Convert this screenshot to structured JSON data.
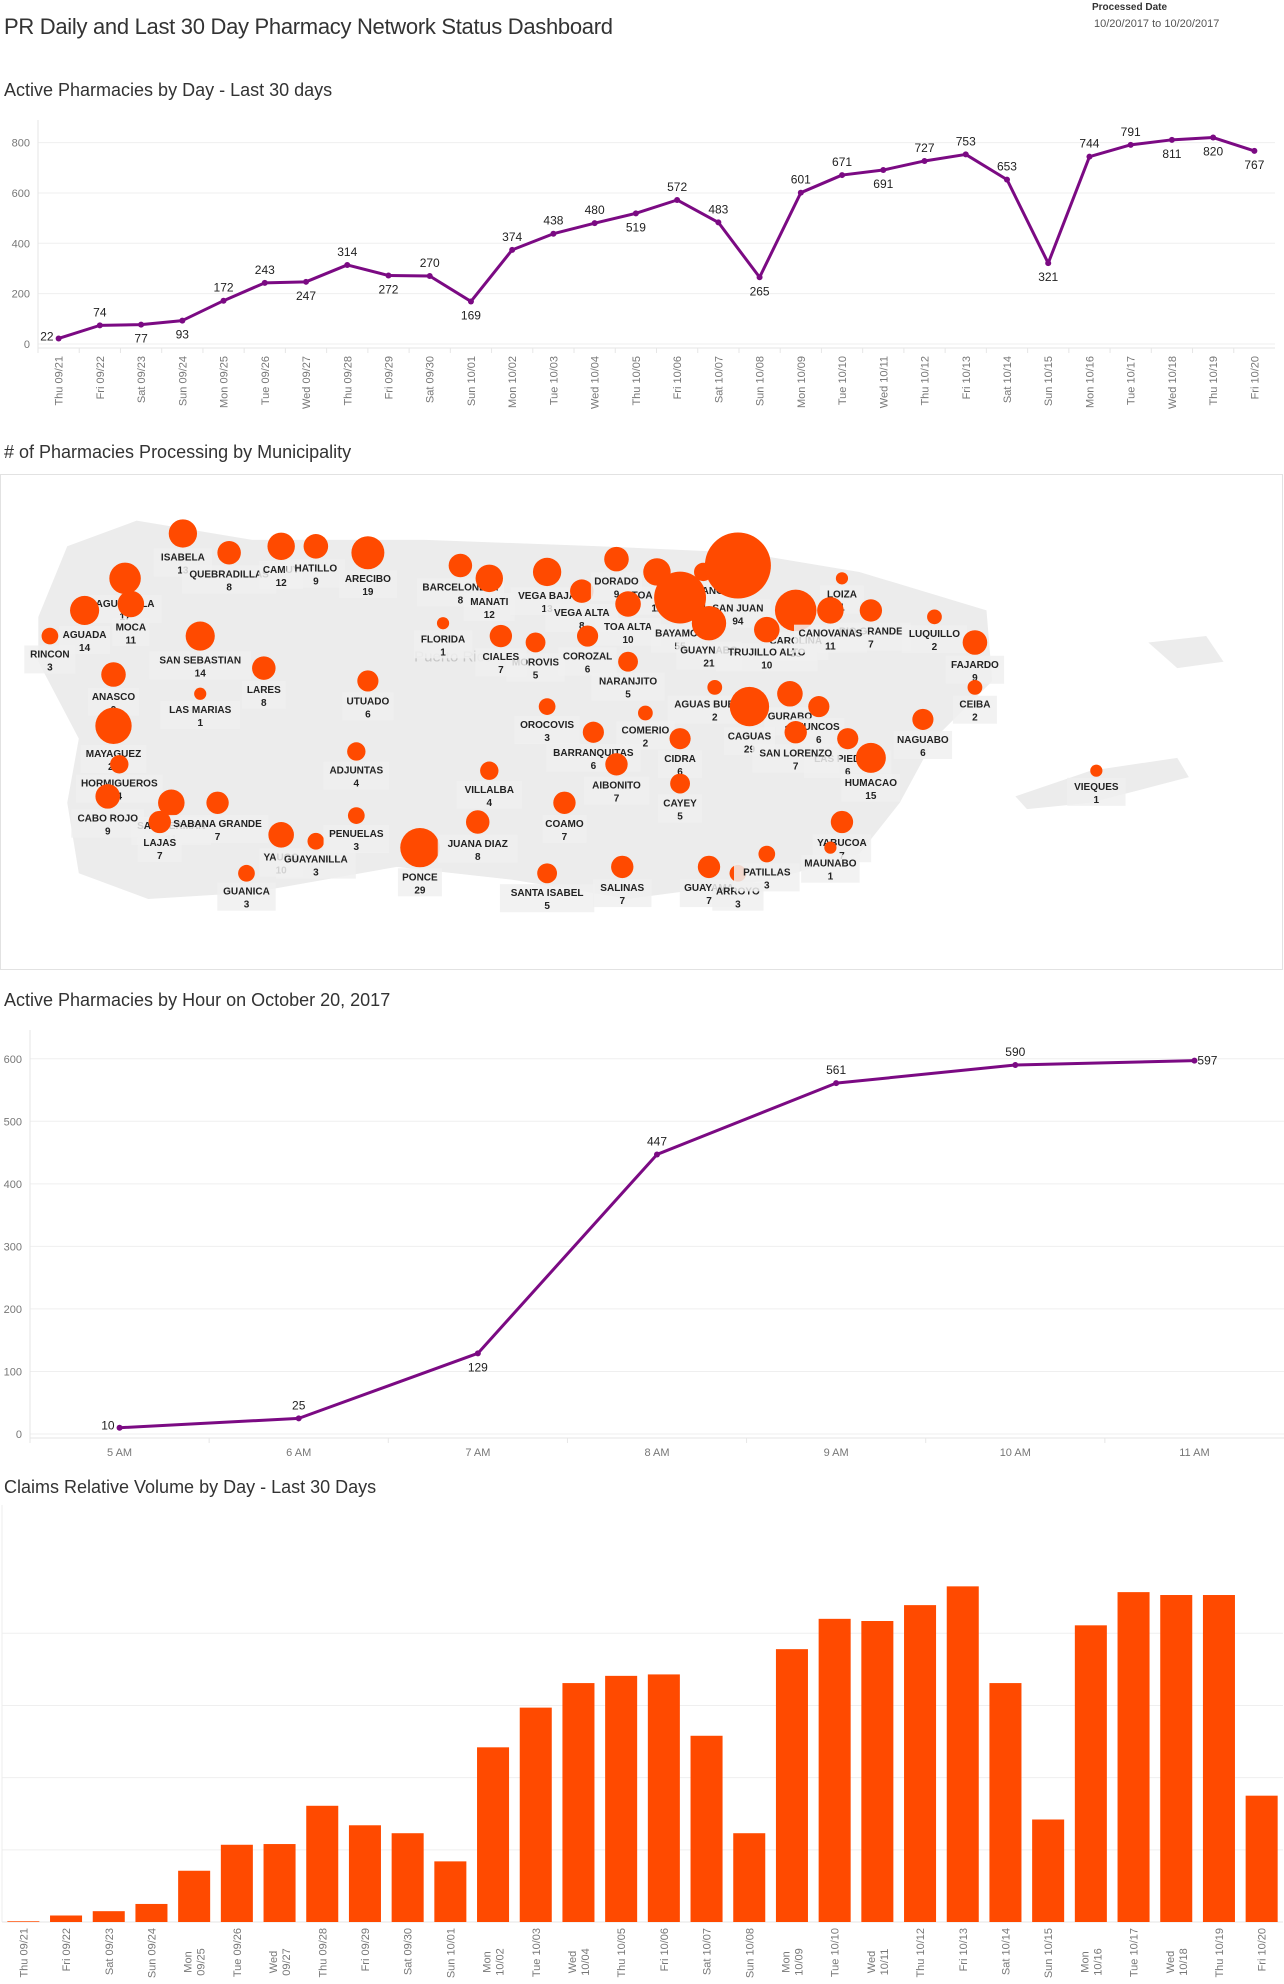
{
  "header": {
    "title": "PR Daily and Last 30 Day Pharmacy Network Status Dashboard",
    "processed_label": "Processed Date",
    "processed_range": "10/20/2017 to 10/20/2017"
  },
  "colors": {
    "line": "#7b0a83",
    "bar": "#ff4a00",
    "bubble": "#ff4a00",
    "land": "#ececec",
    "grid": "#efefef"
  },
  "sections": {
    "daily_title": "Active Pharmacies by Day - Last 30 days",
    "map_title": "# of Pharmacies Processing by Municipality",
    "hourly_title": "Active Pharmacies by Hour on October 20, 2017",
    "claims_title": "Claims Relative Volume by Day - Last 30 Days",
    "map_watermark": "Puerto Rico"
  },
  "chart_data": [
    {
      "id": "daily",
      "type": "line",
      "title": "Active Pharmacies by Day - Last 30 days",
      "xlabel": "",
      "ylabel": "",
      "ylim": [
        0,
        850
      ],
      "yticks": [
        0,
        200,
        400,
        600,
        800
      ],
      "grid": true,
      "categories": [
        "Thu 09/21",
        "Fri 09/22",
        "Sat 09/23",
        "Sun 09/24",
        "Mon 09/25",
        "Tue 09/26",
        "Wed 09/27",
        "Thu 09/28",
        "Fri 09/29",
        "Sat 09/30",
        "Sun 10/01",
        "Mon 10/02",
        "Tue 10/03",
        "Wed 10/04",
        "Thu 10/05",
        "Fri 10/06",
        "Sat 10/07",
        "Sun 10/08",
        "Mon 10/09",
        "Tue 10/10",
        "Wed 10/11",
        "Thu 10/12",
        "Fri 10/13",
        "Sat 10/14",
        "Sun 10/15",
        "Mon 10/16",
        "Tue 10/17",
        "Wed 10/18",
        "Thu 10/19",
        "Fri 10/20"
      ],
      "values": [
        22,
        74,
        77,
        93,
        172,
        243,
        247,
        314,
        272,
        270,
        169,
        374,
        438,
        480,
        519,
        572,
        483,
        265,
        601,
        671,
        691,
        727,
        753,
        653,
        321,
        744,
        791,
        811,
        820,
        767
      ],
      "label_pos": [
        "left",
        "above",
        "below",
        "below",
        "above",
        "above",
        "below",
        "above",
        "below",
        "above",
        "below",
        "above",
        "above",
        "above",
        "below",
        "above",
        "above",
        "below",
        "above",
        "above",
        "below",
        "above",
        "above",
        "above",
        "below",
        "above",
        "above",
        "below",
        "below",
        "below"
      ]
    },
    {
      "id": "hourly",
      "type": "line",
      "title": "Active Pharmacies by Hour on October 20, 2017",
      "xlabel": "",
      "ylabel": "",
      "ylim": [
        0,
        630
      ],
      "yticks": [
        0,
        100,
        200,
        300,
        400,
        500,
        600
      ],
      "grid": true,
      "categories": [
        "5 AM",
        "6 AM",
        "7 AM",
        "8 AM",
        "9 AM",
        "10 AM",
        "11 AM"
      ],
      "values": [
        10,
        25,
        129,
        447,
        561,
        590,
        597
      ],
      "label_pos": [
        "left",
        "above",
        "below",
        "above",
        "above",
        "above",
        "right"
      ]
    },
    {
      "id": "claims",
      "type": "bar",
      "title": "Claims Relative Volume by Day - Last 30 Days",
      "xlabel": "",
      "ylabel": "",
      "note": "No y-axis tick labels shown; values in relative gridline units",
      "ylim": [
        0,
        5.5
      ],
      "gridlines": [
        1,
        2,
        3,
        4
      ],
      "grid": true,
      "categories": [
        "Thu 09/21",
        "Fri 09/22",
        "Sat 09/23",
        "Sun 09/24",
        "Mon 09/25",
        "Tue 09/26",
        "Wed 09/27",
        "Thu 09/28",
        "Fri 09/29",
        "Sat 09/30",
        "Sun 10/01",
        "Mon 10/02",
        "Tue 10/03",
        "Wed 10/04",
        "Thu 10/05",
        "Fri 10/06",
        "Sat 10/07",
        "Sun 10/08",
        "Mon 10/09",
        "Tue 10/10",
        "Wed 10/11",
        "Thu 10/12",
        "Fri 10/13",
        "Sat 10/14",
        "Sun 10/15",
        "Mon 10/16",
        "Tue 10/17",
        "Wed 10/18",
        "Thu 10/19",
        "Fri 10/20"
      ],
      "tick_lines": [
        [
          "Thu 09/21"
        ],
        [
          "Fri 09/22"
        ],
        [
          "Sat 09/23"
        ],
        [
          "Sun 09/24"
        ],
        [
          "Mon",
          "09/25"
        ],
        [
          "Tue 09/26"
        ],
        [
          "Wed",
          "09/27"
        ],
        [
          "Thu 09/28"
        ],
        [
          "Fri 09/29"
        ],
        [
          "Sat 09/30"
        ],
        [
          "Sun 10/01"
        ],
        [
          "Mon",
          "10/02"
        ],
        [
          "Tue 10/03"
        ],
        [
          "Wed",
          "10/04"
        ],
        [
          "Thu 10/05"
        ],
        [
          "Fri 10/06"
        ],
        [
          "Sat 10/07"
        ],
        [
          "Sun 10/08"
        ],
        [
          "Mon",
          "10/09"
        ],
        [
          "Tue 10/10"
        ],
        [
          "Wed",
          "10/11"
        ],
        [
          "Thu 10/12"
        ],
        [
          "Fri 10/13"
        ],
        [
          "Sat 10/14"
        ],
        [
          "Sun 10/15"
        ],
        [
          "Mon",
          "10/16"
        ],
        [
          "Tue 10/17"
        ],
        [
          "Wed",
          "10/18"
        ],
        [
          "Thu 10/19"
        ],
        [
          "Fri 10/20"
        ]
      ],
      "values": [
        0.01,
        0.09,
        0.15,
        0.25,
        0.71,
        1.07,
        1.08,
        1.61,
        1.34,
        1.23,
        0.84,
        2.42,
        2.97,
        3.31,
        3.41,
        3.43,
        2.58,
        1.23,
        3.78,
        4.2,
        4.17,
        4.39,
        4.65,
        3.31,
        1.42,
        4.11,
        4.57,
        4.53,
        4.53,
        1.75
      ]
    },
    {
      "id": "map",
      "type": "scatter",
      "title": "# of Pharmacies Processing by Municipality",
      "encoding": "bubble size = count",
      "points": [
        {
          "name": "AGUADILLA",
          "value": 17,
          "lon": -67.12,
          "lat": 18.43
        },
        {
          "name": "ISABELA",
          "value": 13,
          "lon": -67.02,
          "lat": 18.5
        },
        {
          "name": "QUEBRADILLAS",
          "value": 8,
          "lon": -66.94,
          "lat": 18.47
        },
        {
          "name": "CAMUY",
          "value": 12,
          "lon": -66.85,
          "lat": 18.48
        },
        {
          "name": "HATILLO",
          "value": 9,
          "lon": -66.79,
          "lat": 18.48
        },
        {
          "name": "ARECIBO",
          "value": 19,
          "lon": -66.7,
          "lat": 18.47
        },
        {
          "name": "BARCELONETA",
          "value": 8,
          "lon": -66.54,
          "lat": 18.45
        },
        {
          "name": "MANATI",
          "value": 12,
          "lon": -66.49,
          "lat": 18.43
        },
        {
          "name": "VEGA BAJA",
          "value": 13,
          "lon": -66.39,
          "lat": 18.44
        },
        {
          "name": "VEGA ALTA",
          "value": 8,
          "lon": -66.33,
          "lat": 18.41
        },
        {
          "name": "DORADO",
          "value": 9,
          "lon": -66.27,
          "lat": 18.46
        },
        {
          "name": "TOA BAJA",
          "value": 12,
          "lon": -66.2,
          "lat": 18.44
        },
        {
          "name": "CATANO",
          "value": 4,
          "lon": -66.12,
          "lat": 18.44
        },
        {
          "name": "SAN JUAN",
          "value": 94,
          "lon": -66.06,
          "lat": 18.45
        },
        {
          "name": "CAROLINA",
          "value": 33,
          "lon": -65.96,
          "lat": 18.38
        },
        {
          "name": "LOIZA",
          "value": 1,
          "lon": -65.88,
          "lat": 18.43
        },
        {
          "name": "RIO GRANDE",
          "value": 7,
          "lon": -65.83,
          "lat": 18.38
        },
        {
          "name": "LUQUILLO",
          "value": 2,
          "lon": -65.72,
          "lat": 18.37
        },
        {
          "name": "FAJARDO",
          "value": 9,
          "lon": -65.65,
          "lat": 18.33
        },
        {
          "name": "AGUADA",
          "value": 14,
          "lon": -67.19,
          "lat": 18.38
        },
        {
          "name": "MOCA",
          "value": 11,
          "lon": -67.11,
          "lat": 18.39
        },
        {
          "name": "RINCON",
          "value": 3,
          "lon": -67.25,
          "lat": 18.34
        },
        {
          "name": "SAN SEBASTIAN",
          "value": 14,
          "lon": -66.99,
          "lat": 18.34
        },
        {
          "name": "FLORIDA",
          "value": 1,
          "lon": -66.57,
          "lat": 18.36
        },
        {
          "name": "TOA ALTA",
          "value": 10,
          "lon": -66.25,
          "lat": 18.39
        },
        {
          "name": "BAYAMON",
          "value": 55,
          "lon": -66.16,
          "lat": 18.4
        },
        {
          "name": "GUAYNABO",
          "value": 21,
          "lon": -66.11,
          "lat": 18.36
        },
        {
          "name": "TRUJILLO ALTO",
          "value": 10,
          "lon": -66.01,
          "lat": 18.35
        },
        {
          "name": "CANOVANAS",
          "value": 11,
          "lon": -65.9,
          "lat": 18.38
        },
        {
          "name": "ANASCO",
          "value": 9,
          "lon": -67.14,
          "lat": 18.28
        },
        {
          "name": "MOROVIS",
          "value": 5,
          "lon": -66.41,
          "lat": 18.33
        },
        {
          "name": "COROZAL",
          "value": 6,
          "lon": -66.32,
          "lat": 18.34
        },
        {
          "name": "NARANJITO",
          "value": 5,
          "lon": -66.25,
          "lat": 18.3
        },
        {
          "name": "LARES",
          "value": 8,
          "lon": -66.88,
          "lat": 18.29
        },
        {
          "name": "UTUADO",
          "value": 6,
          "lon": -66.7,
          "lat": 18.27
        },
        {
          "name": "CIALES",
          "value": 7,
          "lon": -66.47,
          "lat": 18.34
        },
        {
          "name": "GURABO",
          "value": 10,
          "lon": -65.97,
          "lat": 18.25
        },
        {
          "name": "LAS MARIAS",
          "value": 1,
          "lon": -66.99,
          "lat": 18.25
        },
        {
          "name": "OROCOVIS",
          "value": 3,
          "lon": -66.39,
          "lat": 18.23
        },
        {
          "name": "COMERIO",
          "value": 2,
          "lon": -66.22,
          "lat": 18.22
        },
        {
          "name": "AGUAS BUENAS",
          "value": 2,
          "lon": -66.1,
          "lat": 18.26
        },
        {
          "name": "JUNCOS",
          "value": 6,
          "lon": -65.92,
          "lat": 18.23
        },
        {
          "name": "NAGUABO",
          "value": 6,
          "lon": -65.74,
          "lat": 18.21
        },
        {
          "name": "CEIBA",
          "value": 2,
          "lon": -65.65,
          "lat": 18.26
        },
        {
          "name": "MAYAGUEZ",
          "value": 24,
          "lon": -67.14,
          "lat": 18.2
        },
        {
          "name": "BARRANQUITAS",
          "value": 6,
          "lon": -66.31,
          "lat": 18.19
        },
        {
          "name": "CIDRA",
          "value": 6,
          "lon": -66.16,
          "lat": 18.18
        },
        {
          "name": "CAGUAS",
          "value": 29,
          "lon": -66.04,
          "lat": 18.23
        },
        {
          "name": "ADJUNTAS",
          "value": 4,
          "lon": -66.72,
          "lat": 18.16
        },
        {
          "name": "LAS PIEDRAS",
          "value": 6,
          "lon": -65.87,
          "lat": 18.18
        },
        {
          "name": "SAN LORENZO",
          "value": 7,
          "lon": -65.96,
          "lat": 18.19
        },
        {
          "name": "HORMIGUEROS",
          "value": 4,
          "lon": -67.13,
          "lat": 18.14
        },
        {
          "name": "SAN GERMAN",
          "value": 11,
          "lon": -67.04,
          "lat": 18.08
        },
        {
          "name": "SABANA GRANDE",
          "value": 7,
          "lon": -66.96,
          "lat": 18.08
        },
        {
          "name": "VILLALBA",
          "value": 4,
          "lon": -66.49,
          "lat": 18.13
        },
        {
          "name": "AIBONITO",
          "value": 7,
          "lon": -66.27,
          "lat": 18.14
        },
        {
          "name": "COAMO",
          "value": 7,
          "lon": -66.36,
          "lat": 18.08
        },
        {
          "name": "CAYEY",
          "value": 5,
          "lon": -66.16,
          "lat": 18.11
        },
        {
          "name": "HUMACAO",
          "value": 15,
          "lon": -65.83,
          "lat": 18.15
        },
        {
          "name": "YABUCOA",
          "value": 7,
          "lon": -65.88,
          "lat": 18.05
        },
        {
          "name": "VIEQUES",
          "value": 1,
          "lon": -65.44,
          "lat": 18.13
        },
        {
          "name": "CABO ROJO",
          "value": 9,
          "lon": -67.15,
          "lat": 18.09
        },
        {
          "name": "YAUCO",
          "value": 10,
          "lon": -66.85,
          "lat": 18.03
        },
        {
          "name": "GUAYANILLA",
          "value": 3,
          "lon": -66.79,
          "lat": 18.02
        },
        {
          "name": "PENUELAS",
          "value": 3,
          "lon": -66.72,
          "lat": 18.06
        },
        {
          "name": "PONCE",
          "value": 29,
          "lon": -66.61,
          "lat": 18.01
        },
        {
          "name": "JUANA DIAZ",
          "value": 8,
          "lon": -66.51,
          "lat": 18.05
        },
        {
          "name": "LAJAS",
          "value": 7,
          "lon": -67.06,
          "lat": 18.05
        },
        {
          "name": "GUANICA",
          "value": 3,
          "lon": -66.91,
          "lat": 17.97
        },
        {
          "name": "SANTA ISABEL",
          "value": 5,
          "lon": -66.39,
          "lat": 17.97
        },
        {
          "name": "SALINAS",
          "value": 7,
          "lon": -66.26,
          "lat": 17.98
        },
        {
          "name": "GUAYAMA",
          "value": 7,
          "lon": -66.11,
          "lat": 17.98
        },
        {
          "name": "ARROYO",
          "value": 3,
          "lon": -66.06,
          "lat": 17.97
        },
        {
          "name": "PATILLAS",
          "value": 3,
          "lon": -66.01,
          "lat": 18.0
        },
        {
          "name": "MAUNABO",
          "value": 1,
          "lon": -65.9,
          "lat": 18.01
        }
      ]
    }
  ]
}
